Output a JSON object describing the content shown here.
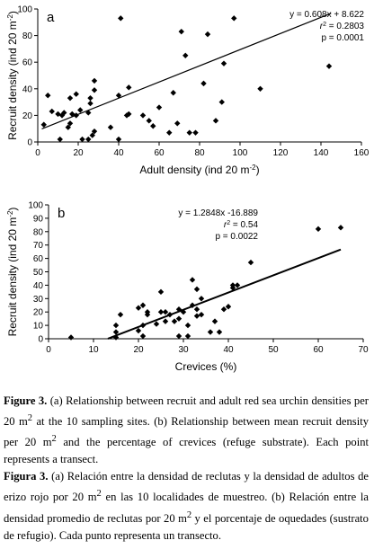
{
  "chart_data": [
    {
      "type": "scatter",
      "panel_label": "a",
      "xlabel": "Adult density (ind 20 m",
      "xlabel_sup": "-2",
      "xlabel_end": ")",
      "ylabel": "Recruit density (ind 20 m",
      "ylabel_sup": "-2",
      "ylabel_end": ")",
      "xlim": [
        0,
        160
      ],
      "ylim": [
        0,
        100
      ],
      "xticks": [
        0,
        20,
        40,
        60,
        80,
        100,
        120,
        140,
        160
      ],
      "yticks": [
        0,
        20,
        40,
        60,
        80,
        100
      ],
      "annotation": {
        "equation": "y = 0.608x + 8.622",
        "r2_label": "r",
        "r2_sup": "2",
        "r2_value": " = 0.2803",
        "p": "p = 0.0001"
      },
      "trendline": {
        "slope": 0.608,
        "intercept": 8.622,
        "x_range": [
          2,
          145
        ]
      },
      "points": [
        [
          3,
          13
        ],
        [
          5,
          35
        ],
        [
          7,
          23
        ],
        [
          10,
          21
        ],
        [
          11,
          2
        ],
        [
          12,
          20
        ],
        [
          13,
          22
        ],
        [
          15,
          11
        ],
        [
          16,
          14
        ],
        [
          16,
          33
        ],
        [
          17,
          21
        ],
        [
          19,
          20
        ],
        [
          19,
          36
        ],
        [
          21,
          24
        ],
        [
          22,
          2
        ],
        [
          25,
          2
        ],
        [
          25,
          22
        ],
        [
          26,
          33
        ],
        [
          26,
          29
        ],
        [
          27,
          5
        ],
        [
          28,
          8
        ],
        [
          28,
          39
        ],
        [
          28,
          46
        ],
        [
          36,
          11
        ],
        [
          40,
          2
        ],
        [
          40,
          35
        ],
        [
          41,
          93
        ],
        [
          44,
          20
        ],
        [
          45,
          41
        ],
        [
          45,
          21
        ],
        [
          52,
          20
        ],
        [
          55,
          16
        ],
        [
          57,
          12
        ],
        [
          60,
          26
        ],
        [
          65,
          7
        ],
        [
          67,
          37
        ],
        [
          69,
          14
        ],
        [
          71,
          83
        ],
        [
          73,
          65
        ],
        [
          75,
          7
        ],
        [
          78,
          7
        ],
        [
          82,
          44
        ],
        [
          84,
          81
        ],
        [
          88,
          16
        ],
        [
          91,
          30
        ],
        [
          92,
          59
        ],
        [
          97,
          93
        ],
        [
          110,
          40
        ],
        [
          144,
          57
        ]
      ]
    },
    {
      "type": "scatter",
      "panel_label": "b",
      "xlabel": "Crevices (%)",
      "ylabel": "Recruit density (ind 20 m",
      "ylabel_sup": "-2",
      "ylabel_end": ")",
      "xlim": [
        0,
        70
      ],
      "ylim": [
        0,
        100
      ],
      "xticks": [
        0,
        10,
        20,
        30,
        40,
        50,
        60,
        70
      ],
      "yticks": [
        0,
        10,
        20,
        30,
        40,
        50,
        60,
        70,
        80,
        90,
        100
      ],
      "annotation": {
        "equation": "y = 1.2848x -16.889",
        "r2_label": "r",
        "r2_sup": "2",
        "r2_value": " = 0.54",
        "p": "p = 0.0022"
      },
      "trendline": {
        "slope": 1.2848,
        "intercept": -16.889,
        "x_range": [
          13.2,
          65
        ]
      },
      "points": [
        [
          5,
          1
        ],
        [
          15,
          1
        ],
        [
          15,
          5
        ],
        [
          15,
          10
        ],
        [
          16,
          18
        ],
        [
          20,
          23
        ],
        [
          20,
          6
        ],
        [
          21,
          2
        ],
        [
          21,
          10
        ],
        [
          21,
          25
        ],
        [
          22,
          18
        ],
        [
          22,
          20
        ],
        [
          24,
          11
        ],
        [
          25,
          20
        ],
        [
          25,
          35
        ],
        [
          26,
          20
        ],
        [
          26,
          13
        ],
        [
          27,
          18
        ],
        [
          28,
          13
        ],
        [
          29,
          15
        ],
        [
          29,
          2
        ],
        [
          29,
          22
        ],
        [
          30,
          20
        ],
        [
          31,
          10
        ],
        [
          31,
          2
        ],
        [
          32,
          25
        ],
        [
          32,
          44
        ],
        [
          33,
          17
        ],
        [
          33,
          22
        ],
        [
          33,
          37
        ],
        [
          34,
          18
        ],
        [
          34,
          30
        ],
        [
          36,
          5
        ],
        [
          37,
          13
        ],
        [
          38,
          5
        ],
        [
          39,
          22
        ],
        [
          40,
          24
        ],
        [
          41,
          38
        ],
        [
          41,
          40
        ],
        [
          42,
          40
        ],
        [
          45,
          57
        ],
        [
          60,
          82
        ],
        [
          65,
          83
        ]
      ]
    }
  ],
  "caption": {
    "fig_en": "Figure 3.",
    "text_en_1": " (a) Relationship between recruit and adult red sea urchin densities per 20 m",
    "sup_en_1": "2",
    "text_en_2": " at the 10 sampling sites. (b) Relationship between mean recruit density per 20 m",
    "sup_en_2": "2",
    "text_en_3": " and the percentage of crevices (refuge substrate). Each point represents a transect.",
    "fig_es": "Figura 3.",
    "text_es_1": " (a) Relación entre la densidad de reclutas y la densidad de adultos de erizo rojo por 20 m",
    "sup_es_1": "2",
    "text_es_2": " en las 10 localidades de muestreo. (b) Relación entre la densidad promedio de reclutas por 20 m",
    "sup_es_2": "2",
    "text_es_3": " y el porcentaje de oquedades (sustrato de refugio). Cada punto representa un transecto."
  }
}
